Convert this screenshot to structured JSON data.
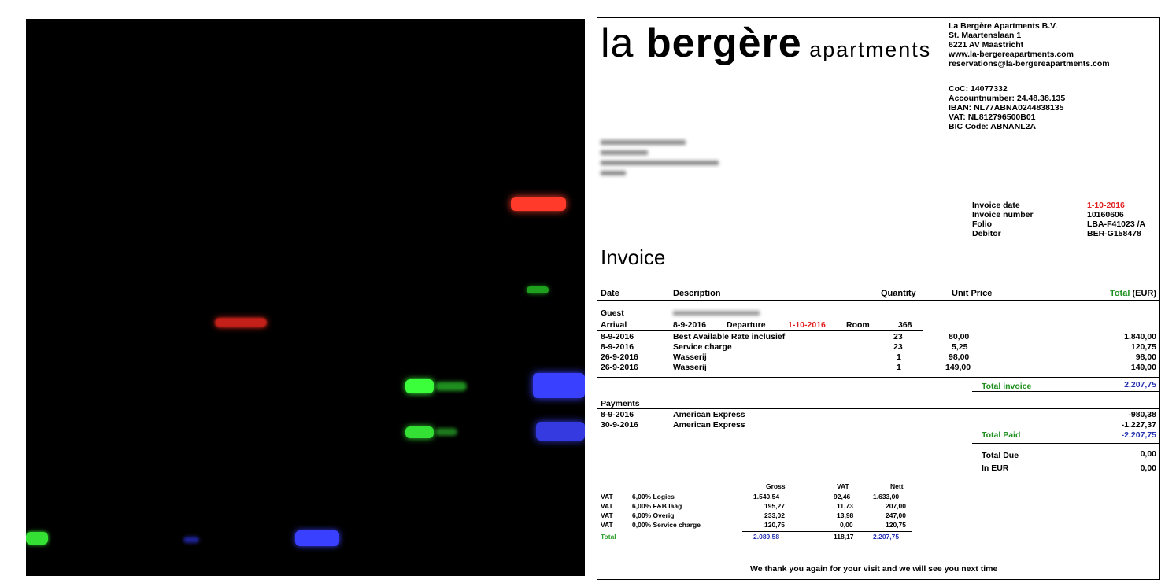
{
  "invoice": {
    "logo_light": "la ",
    "logo_bold": "bergère",
    "logo_suffix": " apartments",
    "company": [
      "La Bergère Apartments B.V.",
      "St. Maartenslaan 1",
      "6221 AV Maastricht",
      "www.la-bergereapartments.com",
      "reservations@la-bergereapartments.com"
    ],
    "registry": [
      "CoC: 14077332",
      "Accountnumber: 24.48.38.135",
      "IBAN: NL77ABNA0244838135",
      "VAT: NL812796500B01",
      "BIC Code: ABNANL2A"
    ],
    "meta": [
      {
        "label": "Invoice date",
        "value": "1-10-2016"
      },
      {
        "label": "Invoice number",
        "value": "10160606"
      },
      {
        "label": "Folio",
        "value": "LBA-F41023 /A"
      },
      {
        "label": "Debitor",
        "value": "BER-G158478"
      }
    ],
    "title": "Invoice",
    "columns": {
      "date": "Date",
      "description": "Description",
      "quantity": "Quantity",
      "unit_price": "Unit Price",
      "total_prefix": "Total",
      "total_suffix": " (EUR)"
    },
    "guest_label": "Guest",
    "arrival_label": "Arrival",
    "arrival_date": "8-9-2016",
    "departure_label": "Departure",
    "departure_date": "1-10-2016",
    "room_label": "Room",
    "room_number": "368",
    "lines": [
      {
        "date": "8-9-2016",
        "description": "Best Available Rate inclusief",
        "quantity": "23",
        "unit_price": "80,00",
        "total": "1.840,00"
      },
      {
        "date": "8-9-2016",
        "description": "Service charge",
        "quantity": "23",
        "unit_price": "5,25",
        "total": "120,75"
      },
      {
        "date": "26-9-2016",
        "description": "Wasserij",
        "quantity": "1",
        "unit_price": "98,00",
        "total": "98,00"
      },
      {
        "date": "26-9-2016",
        "description": "Wasserij",
        "quantity": "1",
        "unit_price": "149,00",
        "total": "149,00"
      }
    ],
    "total_invoice_label": "Total invoice",
    "total_invoice_value": "2.207,75",
    "payments_label": "Payments",
    "payments": [
      {
        "date": "8-9-2016",
        "description": "American Express",
        "amount": "-980,38"
      },
      {
        "date": "30-9-2016",
        "description": "American Express",
        "amount": "-1.227,37"
      }
    ],
    "total_paid_label": "Total Paid",
    "total_paid_value": "-2.207,75",
    "total_due_label": "Total Due",
    "total_due_value": "0,00",
    "in_eur_label": "In EUR",
    "in_eur_value": "0,00",
    "vat_headers": {
      "gross": "Gross",
      "vat": "VAT",
      "nett": "Nett"
    },
    "vat_rows": [
      {
        "type": "VAT",
        "rate": "6,00% Logies",
        "gross": "1.540,54",
        "vat": "92,46",
        "nett": "1.633,00"
      },
      {
        "type": "VAT",
        "rate": "6,00% F&B laag",
        "gross": "195,27",
        "vat": "11,73",
        "nett": "207,00"
      },
      {
        "type": "VAT",
        "rate": "6,00% Overig",
        "gross": "233,02",
        "vat": "13,98",
        "nett": "247,00"
      },
      {
        "type": "VAT",
        "rate": "0,00% Service charge",
        "gross": "120,75",
        "vat": "0,00",
        "nett": "120,75"
      }
    ],
    "vat_total": {
      "label": "Total",
      "gross": "2.089,58",
      "vat": "118,17",
      "nett": "2.207,75"
    },
    "footer": "We thank you again for your visit and we will see you next time"
  },
  "colors": {
    "red": "#e02020",
    "green": "#1f8f1f",
    "blue": "#2430b0",
    "gel_background": "#000000",
    "band_red": "#ff3a2a",
    "band_green": "#3cff3c",
    "band_blue": "#3a40ff"
  }
}
